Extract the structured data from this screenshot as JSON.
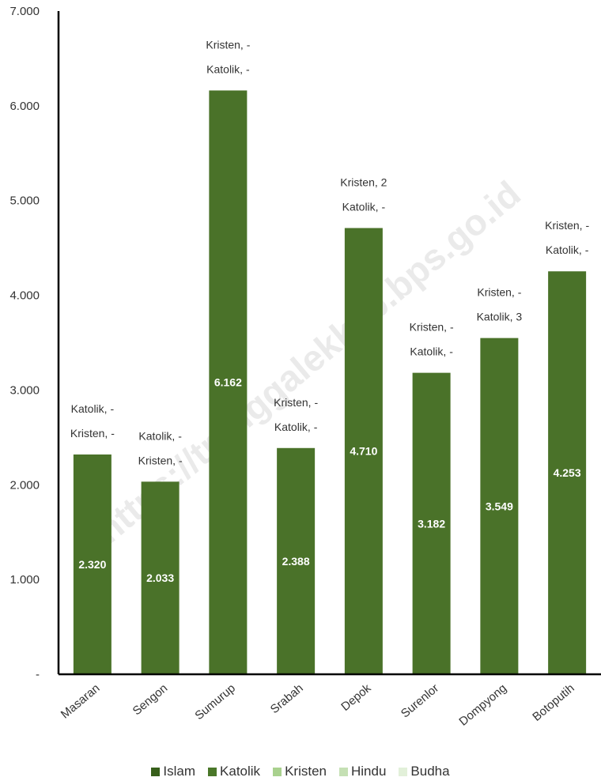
{
  "watermark": "https://trenggalekkab.bps.go.id",
  "chart_data": {
    "type": "bar",
    "y_tick_labels": [
      "-",
      "1.000",
      "2.000",
      "3.000",
      "4.000",
      "5.000",
      "6.000",
      "7.000"
    ],
    "ylim": [
      0,
      7000
    ],
    "grid": false,
    "legend_position": "bottom",
    "categories": [
      "Masaran",
      "Sengon",
      "Sumurup",
      "Srabah",
      "Depok",
      "Surenlor",
      "Dompyong",
      "Botoputih"
    ],
    "series": [
      {
        "name": "Islam",
        "color": "#375f1b",
        "values": [
          2320,
          2033,
          6162,
          2388,
          4710,
          3182,
          3549,
          4253
        ],
        "labels": [
          "2.320",
          "2.033",
          "6.162",
          "2.388",
          "4.710",
          "3.182",
          "3.549",
          "4.253"
        ]
      },
      {
        "name": "Katolik",
        "color": "#4a7729",
        "values": [
          0,
          0,
          0,
          0,
          0,
          0,
          3,
          0
        ]
      },
      {
        "name": "Kristen",
        "color": "#a9d18e",
        "values": [
          0,
          0,
          0,
          0,
          2,
          0,
          0,
          0
        ]
      },
      {
        "name": "Hindu",
        "color": "#c5e0b4",
        "values": [
          0,
          0,
          0,
          0,
          0,
          0,
          0,
          0
        ]
      },
      {
        "name": "Budha",
        "color": "#e2f0d9",
        "values": [
          0,
          0,
          0,
          0,
          0,
          0,
          0,
          0
        ]
      }
    ],
    "annotations": [
      [
        "Katolik, -",
        "Kristen, -"
      ],
      [
        "Katolik, -",
        "Kristen, -"
      ],
      [
        "Kristen, -",
        "Katolik, -"
      ],
      [
        "Kristen, -",
        "Katolik, -"
      ],
      [
        "Kristen, 2",
        "Katolik, -"
      ],
      [
        "Kristen, -",
        "Katolik, -"
      ],
      [
        "Kristen, -",
        "Katolik, 3"
      ],
      [
        "Kristen, -",
        "Katolik, -"
      ]
    ]
  }
}
